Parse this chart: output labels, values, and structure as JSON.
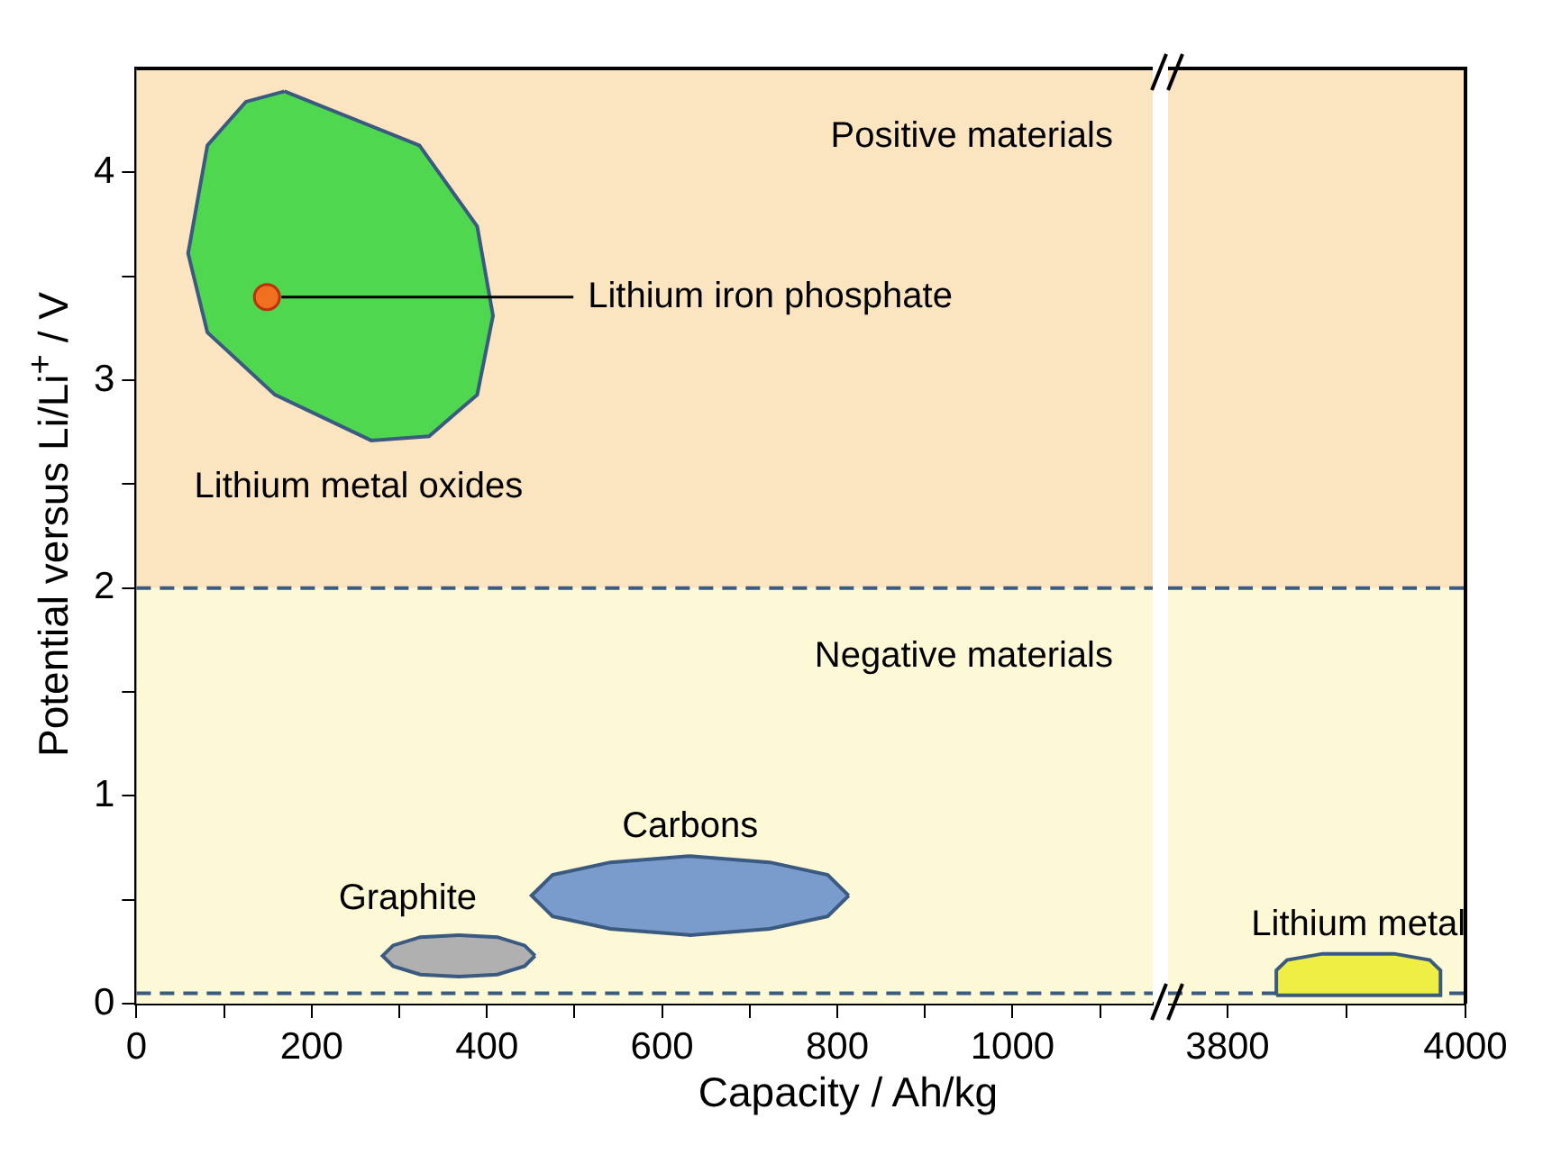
{
  "chart_data": [
    {
      "type": "scatter",
      "xlabel": "Capacity  /  Ah/kg",
      "ylabel": "Potential versus Li/Li$^{+}$  /  V",
      "xlim": [
        0,
        1160
      ],
      "xticks": [
        0,
        {
          "value": 100,
          "label": null
        },
        200,
        {
          "value": 300,
          "label": null
        },
        400,
        {
          "value": 500,
          "label": null
        },
        600,
        {
          "value": 700,
          "label": null
        },
        800,
        {
          "value": 900,
          "label": null
        },
        1000,
        {
          "value": 1100,
          "label": null
        }
      ],
      "ylim": [
        0,
        4.5
      ],
      "yticks": [
        0,
        {
          "value": 0.5,
          "label": null
        },
        1,
        {
          "value": 1.5,
          "label": null
        },
        2,
        {
          "value": 2.5,
          "label": null
        },
        3,
        {
          "value": 3.5,
          "label": null
        },
        4
      ],
      "grid": false,
      "legend": false,
      "bands": [
        {
          "axis": "y",
          "from": 2,
          "to": 4.5,
          "label": "Positive materials",
          "color": "#fbe4c0"
        },
        {
          "axis": "y",
          "from": 0,
          "to": 2,
          "label": "Negative materials",
          "color": "#fdf8d6"
        }
      ],
      "ref_lines": [
        {
          "axis": "y",
          "value": 2,
          "color": "#3b5a80",
          "line_style": "dashed"
        },
        {
          "axis": "y",
          "value": 0.05,
          "color": "#3b5a80",
          "line_style": "dashed"
        }
      ],
      "series": [
        {
          "name": "Lithium metal oxides",
          "type": "area",
          "color": "#4fd84f",
          "x": [
            169,
            323,
            389,
            407,
            389,
            334,
            268,
            158,
            81,
            59,
            81,
            125,
            169
          ],
          "values": [
            4.39,
            4.13,
            3.74,
            3.31,
            2.93,
            2.73,
            2.71,
            2.93,
            3.23,
            3.61,
            4.13,
            4.34,
            4.39
          ]
        },
        {
          "name": "Lithium iron phosphate",
          "color": "#f07020",
          "marker": "circle",
          "x": [
            149
          ],
          "values": [
            3.4
          ]
        },
        {
          "name": "Graphite",
          "type": "area",
          "color": "#b0b0b0",
          "x": [
            455,
            443,
            412,
            368,
            324,
            293,
            281,
            293,
            324,
            368,
            412,
            443,
            455
          ],
          "values": [
            0.23,
            0.28,
            0.32,
            0.33,
            0.32,
            0.28,
            0.23,
            0.18,
            0.14,
            0.13,
            0.14,
            0.18,
            0.23
          ]
        },
        {
          "name": "Carbons",
          "type": "area",
          "color": "#7a9ccc",
          "x": [
            813,
            789,
            723,
            632,
            541,
            475,
            451,
            475,
            541,
            632,
            723,
            789,
            813
          ],
          "values": [
            0.52,
            0.62,
            0.68,
            0.71,
            0.68,
            0.62,
            0.52,
            0.42,
            0.36,
            0.33,
            0.36,
            0.42,
            0.52
          ]
        }
      ]
    },
    {
      "type": "area",
      "xlim": [
        3750,
        4000
      ],
      "xticks": [
        3800,
        {
          "value": 3900,
          "label": null
        },
        4000
      ],
      "ylim": [
        0,
        4.5
      ],
      "tick_labels": "x",
      "grid": false,
      "legend": false,
      "bands": [
        {
          "axis": "y",
          "from": 2,
          "to": 4.5,
          "color": "#fbe4c0"
        },
        {
          "axis": "y",
          "from": 0,
          "to": 2,
          "color": "#fdf8d6"
        }
      ],
      "ref_lines": [
        {
          "axis": "y",
          "value": 2,
          "color": "#3b5a80",
          "line_style": "dashed"
        },
        {
          "axis": "y",
          "value": 0.05,
          "color": "#3b5a80",
          "line_style": "dashed"
        }
      ],
      "series": [
        {
          "name": "Lithium metal",
          "color": "#eeee44",
          "x": [
            3841,
            3841,
            3850,
            3880,
            3910,
            3940,
            3970,
            3979,
            3979,
            3841
          ],
          "values": [
            0.04,
            0.16,
            0.21,
            0.24,
            0.24,
            0.24,
            0.21,
            0.16,
            0.04,
            0.04
          ]
        }
      ]
    }
  ]
}
